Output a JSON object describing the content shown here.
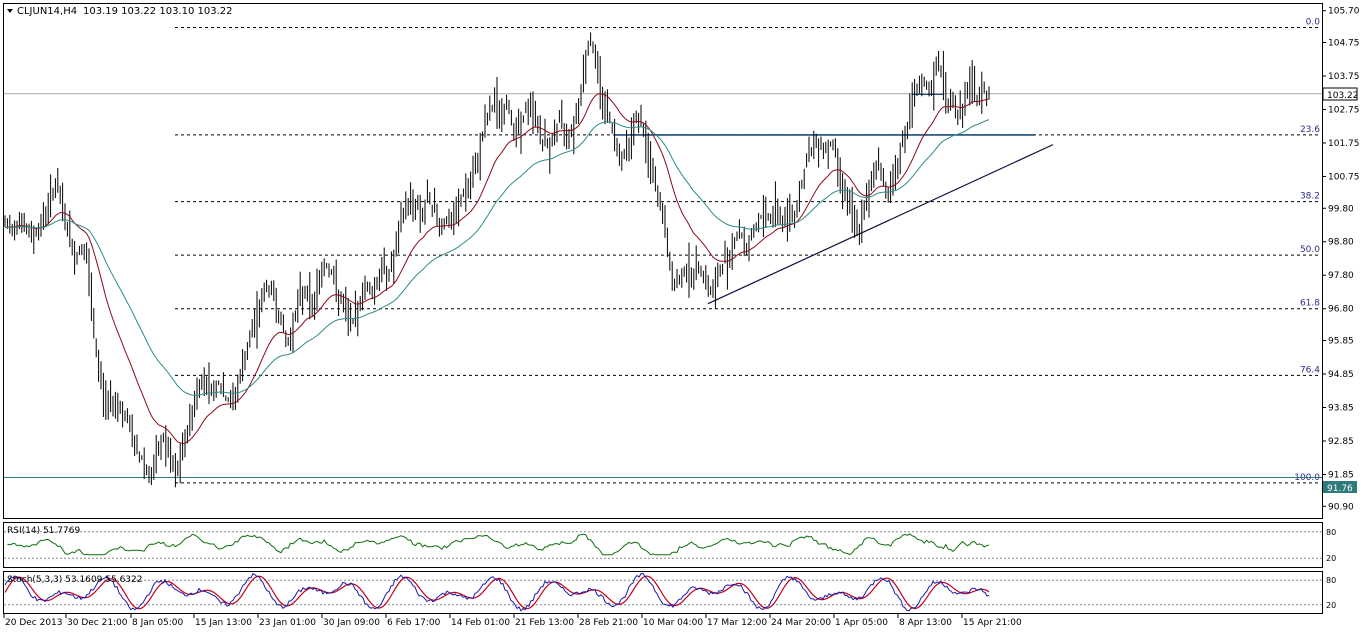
{
  "symbol_header": {
    "symbol": "CLJUN14,H4",
    "ohlc": "103.19 103.22 103.10 103.22"
  },
  "chart_data": {
    "type": "candlestick",
    "price_axis": {
      "range": [
        90.55,
        105.9
      ],
      "ticks": [
        "105.70",
        "104.75",
        "103.75",
        "102.75",
        "101.75",
        "100.75",
        "99.80",
        "98.80",
        "97.80",
        "96.80",
        "95.85",
        "94.85",
        "93.85",
        "92.85",
        "91.85",
        "90.90"
      ],
      "tick_values": [
        105.7,
        104.75,
        103.75,
        102.75,
        101.75,
        100.75,
        99.8,
        98.8,
        97.8,
        96.8,
        95.85,
        94.85,
        93.85,
        92.85,
        91.85,
        90.9
      ]
    },
    "time_axis": {
      "labels": [
        "20 Dec 2013",
        "30 Dec 21:00",
        "8 Jan 05:00",
        "15 Jan 13:00",
        "23 Jan 01:00",
        "30 Jan 09:00",
        "6 Feb 17:00",
        "14 Feb 01:00",
        "21 Feb 13:00",
        "28 Feb 21:00",
        "10 Mar 04:00",
        "17 Mar 12:00",
        "24 Mar 20:00",
        "1 Apr 05:00",
        "8 Apr 13:00",
        "15 Apr 21:00"
      ]
    },
    "current_price": {
      "value": 103.22,
      "label": "103.22"
    },
    "horizontal_line": {
      "value": 91.76,
      "label": "91.76"
    },
    "fibonacci": {
      "high": 105.2,
      "low": 91.6,
      "levels": [
        {
          "label": "0.0",
          "value": 105.2
        },
        {
          "label": "23.6",
          "value": 101.99
        },
        {
          "label": "38.2",
          "value": 100.0
        },
        {
          "label": "50.0",
          "value": 98.4
        },
        {
          "label": "61.8",
          "value": 96.8
        },
        {
          "label": "76.4",
          "value": 94.81
        },
        {
          "label": "100.0",
          "value": 91.6
        }
      ]
    },
    "price_path": [
      [
        0,
        99.4
      ],
      [
        10,
        99.2
      ],
      [
        20,
        99.5
      ],
      [
        30,
        98.9
      ],
      [
        40,
        99.3
      ],
      [
        50,
        100.1
      ],
      [
        55,
        100.6
      ],
      [
        60,
        100.0
      ],
      [
        67,
        99.2
      ],
      [
        73,
        98.3
      ],
      [
        80,
        98.6
      ],
      [
        85,
        98.7
      ],
      [
        90,
        97.0
      ],
      [
        95,
        95.6
      ],
      [
        100,
        94.6
      ],
      [
        105,
        93.9
      ],
      [
        112,
        94.1
      ],
      [
        120,
        93.8
      ],
      [
        128,
        93.4
      ],
      [
        135,
        92.6
      ],
      [
        142,
        92.3
      ],
      [
        150,
        91.8
      ],
      [
        157,
        92.4
      ],
      [
        163,
        93.0
      ],
      [
        170,
        92.2
      ],
      [
        176,
        91.8
      ],
      [
        182,
        92.6
      ],
      [
        188,
        93.3
      ],
      [
        195,
        94.2
      ],
      [
        202,
        94.8
      ],
      [
        210,
        94.3
      ],
      [
        218,
        94.6
      ],
      [
        225,
        94.1
      ],
      [
        232,
        94.0
      ],
      [
        238,
        94.6
      ],
      [
        245,
        95.4
      ],
      [
        252,
        96.2
      ],
      [
        258,
        96.8
      ],
      [
        264,
        97.3
      ],
      [
        270,
        97.5
      ],
      [
        276,
        96.9
      ],
      [
        282,
        96.2
      ],
      [
        288,
        95.7
      ],
      [
        294,
        96.6
      ],
      [
        300,
        97.2
      ],
      [
        306,
        97.4
      ],
      [
        312,
        96.8
      ],
      [
        318,
        97.6
      ],
      [
        324,
        98.2
      ],
      [
        330,
        98.0
      ],
      [
        336,
        97.3
      ],
      [
        342,
        96.9
      ],
      [
        348,
        96.5
      ],
      [
        354,
        96.4
      ],
      [
        360,
        97.1
      ],
      [
        366,
        97.6
      ],
      [
        372,
        97.2
      ],
      [
        378,
        97.8
      ],
      [
        384,
        98.1
      ],
      [
        390,
        97.9
      ],
      [
        396,
        98.6
      ],
      [
        400,
        99.3
      ],
      [
        404,
        99.8
      ],
      [
        410,
        100.1
      ],
      [
        416,
        99.9
      ],
      [
        422,
        99.6
      ],
      [
        428,
        100.1
      ],
      [
        434,
        99.8
      ],
      [
        440,
        99.2
      ],
      [
        446,
        99.5
      ],
      [
        452,
        99.3
      ],
      [
        458,
        99.9
      ],
      [
        464,
        100.3
      ],
      [
        470,
        100.5
      ],
      [
        476,
        101.1
      ],
      [
        482,
        102.0
      ],
      [
        488,
        102.6
      ],
      [
        494,
        103.0
      ],
      [
        500,
        102.5
      ],
      [
        506,
        102.9
      ],
      [
        512,
        102.4
      ],
      [
        518,
        102.1
      ],
      [
        524,
        102.6
      ],
      [
        530,
        102.9
      ],
      [
        536,
        102.4
      ],
      [
        542,
        101.8
      ],
      [
        548,
        101.6
      ],
      [
        554,
        102.1
      ],
      [
        560,
        102.4
      ],
      [
        566,
        102.0
      ],
      [
        572,
        102.2
      ],
      [
        578,
        102.9
      ],
      [
        582,
        103.7
      ],
      [
        586,
        104.5
      ],
      [
        590,
        104.9
      ],
      [
        594,
        104.4
      ],
      [
        598,
        103.7
      ],
      [
        602,
        103.1
      ],
      [
        608,
        102.6
      ],
      [
        614,
        101.9
      ],
      [
        620,
        101.3
      ],
      [
        626,
        101.6
      ],
      [
        632,
        102.2
      ],
      [
        638,
        102.6
      ],
      [
        644,
        101.9
      ],
      [
        650,
        101.0
      ],
      [
        656,
        100.3
      ],
      [
        662,
        99.6
      ],
      [
        666,
        98.8
      ],
      [
        670,
        97.9
      ],
      [
        674,
        97.4
      ],
      [
        680,
        97.8
      ],
      [
        686,
        98.1
      ],
      [
        692,
        97.6
      ],
      [
        698,
        98.2
      ],
      [
        704,
        97.8
      ],
      [
        710,
        97.2
      ],
      [
        716,
        97.6
      ],
      [
        722,
        98.1
      ],
      [
        728,
        98.4
      ],
      [
        734,
        98.9
      ],
      [
        740,
        99.1
      ],
      [
        746,
        98.6
      ],
      [
        752,
        99.0
      ],
      [
        758,
        99.4
      ],
      [
        764,
        99.7
      ],
      [
        770,
        99.5
      ],
      [
        776,
        99.9
      ],
      [
        782,
        99.3
      ],
      [
        788,
        99.8
      ],
      [
        794,
        99.6
      ],
      [
        800,
        100.4
      ],
      [
        806,
        101.2
      ],
      [
        812,
        101.6
      ],
      [
        818,
        101.9
      ],
      [
        824,
        101.5
      ],
      [
        830,
        101.8
      ],
      [
        836,
        101.3
      ],
      [
        842,
        100.5
      ],
      [
        848,
        99.9
      ],
      [
        854,
        99.3
      ],
      [
        858,
        99.1
      ],
      [
        862,
        99.6
      ],
      [
        866,
        99.9
      ],
      [
        870,
        100.6
      ],
      [
        876,
        101.2
      ],
      [
        882,
        100.7
      ],
      [
        888,
        100.2
      ],
      [
        894,
        100.9
      ],
      [
        900,
        101.5
      ],
      [
        906,
        102.2
      ],
      [
        912,
        102.9
      ],
      [
        918,
        103.4
      ],
      [
        924,
        103.5
      ],
      [
        930,
        103.3
      ],
      [
        936,
        103.9
      ],
      [
        940,
        104.2
      ],
      [
        944,
        103.4
      ],
      [
        948,
        102.8
      ],
      [
        952,
        103.1
      ],
      [
        958,
        102.5
      ],
      [
        964,
        103.0
      ],
      [
        970,
        103.6
      ],
      [
        976,
        103.0
      ],
      [
        982,
        103.4
      ],
      [
        988,
        103.2
      ]
    ],
    "indicator_rsi": {
      "label": "RSI(14) 51.7769",
      "levels": [
        "80",
        "20"
      ]
    },
    "indicator_stoch": {
      "label": "Stoch(5,3,3) 53.1609 55.6322",
      "levels": [
        "80",
        "20"
      ]
    },
    "colors": {
      "candles": "#000000",
      "ma_fast": "#8b0a1a",
      "ma_slow": "#2e8b8b",
      "fib_lines": "#000000",
      "fib_label": "#2b2b8b",
      "resistance": "#1f4e79",
      "trendline": "#10103a",
      "rsi_line": "#0f6e0f",
      "stoch_main": "#1a1aa8",
      "stoch_signal": "#c2001c",
      "price_box": "#ffffff",
      "hline_box": "#2e7b7b"
    }
  }
}
